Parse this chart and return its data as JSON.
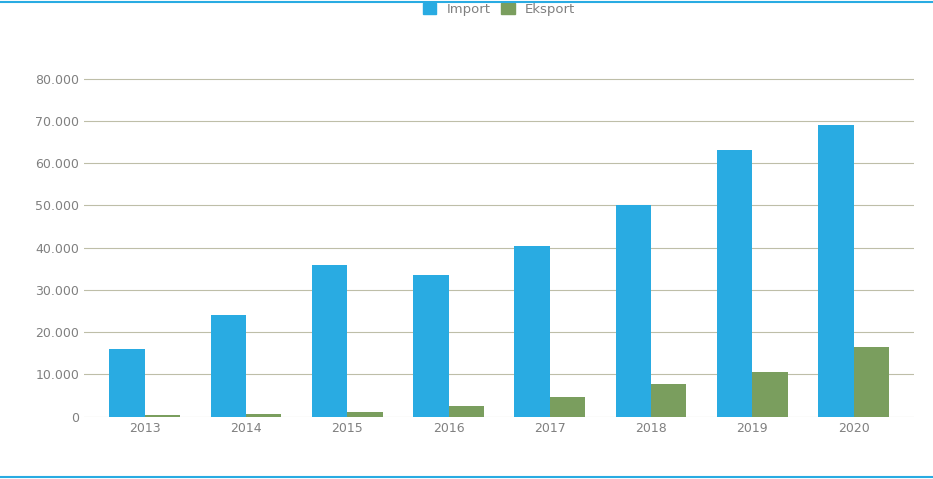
{
  "years": [
    "2013",
    "2014",
    "2015",
    "2016",
    "2017",
    "2018",
    "2019",
    "2020"
  ],
  "import_values": [
    16000,
    24000,
    36000,
    33500,
    40500,
    50000,
    63000,
    69000
  ],
  "eksport_values": [
    500,
    700,
    1200,
    2500,
    4700,
    7700,
    10700,
    16500
  ],
  "import_color": "#29ABE2",
  "eksport_color": "#7A9E5E",
  "background_color": "#FFFFFF",
  "grid_color": "#BEBEA8",
  "ylim": [
    0,
    85000
  ],
  "yticks": [
    0,
    10000,
    20000,
    30000,
    40000,
    50000,
    60000,
    70000,
    80000
  ],
  "ytick_labels": [
    "0",
    "10.000",
    "20.000",
    "30.000",
    "40.000",
    "50.000",
    "60.000",
    "70.000",
    "80.000"
  ],
  "legend_labels": [
    "Import",
    "Eksport"
  ],
  "bar_width": 0.35,
  "top_line_color": "#29ABE2",
  "bottom_line_color": "#29ABE2",
  "tick_label_color": "#808080",
  "tick_label_fontsize": 9
}
